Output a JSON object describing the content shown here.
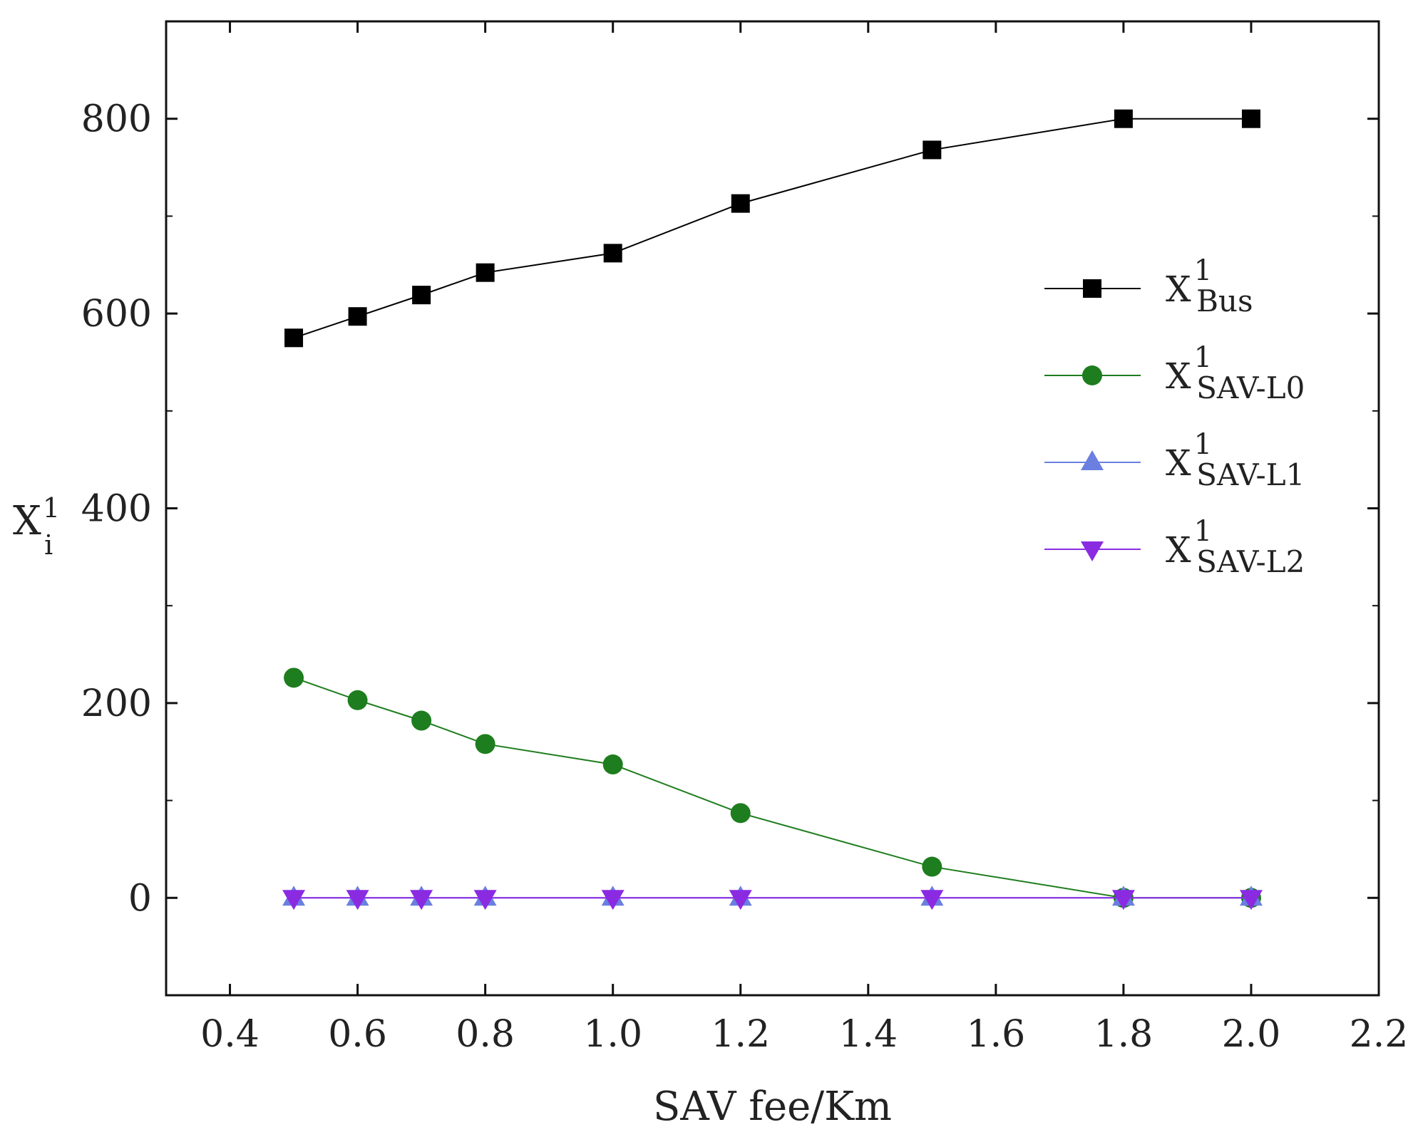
{
  "chart_data": {
    "type": "line",
    "title": "",
    "xlabel": "SAV fee/Km",
    "ylabel": {
      "base": "X",
      "sub": "i",
      "sup": "1"
    },
    "xlim": [
      0.3,
      2.2
    ],
    "ylim": [
      -100,
      900
    ],
    "xticks": [
      0.4,
      0.6,
      0.8,
      1.0,
      1.2,
      1.4,
      1.6,
      1.8,
      2.0,
      2.2
    ],
    "xtick_labels": [
      "0.4",
      "0.6",
      "0.8",
      "1.0",
      "1.2",
      "1.4",
      "1.6",
      "1.8",
      "2.0",
      "2.2"
    ],
    "yticks": [
      0,
      200,
      400,
      600,
      800
    ],
    "ytick_labels": [
      "0",
      "200",
      "400",
      "600",
      "800"
    ],
    "x": [
      0.5,
      0.6,
      0.7,
      0.8,
      1.0,
      1.2,
      1.5,
      1.8,
      2.0
    ],
    "series": [
      {
        "name": "Bus",
        "label": {
          "base": "X",
          "sub": "Bus",
          "sup": "1"
        },
        "color": "#000000",
        "marker": "square",
        "values": [
          575,
          597,
          619,
          642,
          662,
          713,
          768,
          800,
          800
        ]
      },
      {
        "name": "SAV-L0",
        "label": {
          "base": "X",
          "sub": "SAV-L0",
          "sup": "1"
        },
        "color": "#1e7d1e",
        "marker": "circle",
        "values": [
          226,
          203,
          182,
          158,
          137,
          87,
          32,
          0,
          0
        ]
      },
      {
        "name": "SAV-L1",
        "label": {
          "base": "X",
          "sub": "SAV-L1",
          "sup": "1"
        },
        "color": "#6a7fe0",
        "marker": "triangle-up",
        "values": [
          0,
          0,
          0,
          0,
          0,
          0,
          0,
          0,
          0
        ]
      },
      {
        "name": "SAV-L2",
        "label": {
          "base": "X",
          "sub": "SAV-L2",
          "sup": "1"
        },
        "color": "#8a2be2",
        "marker": "triangle-down",
        "values": [
          0,
          0,
          0,
          0,
          0,
          0,
          0,
          0,
          0
        ]
      }
    ],
    "grid": false,
    "legend_position": "right"
  }
}
